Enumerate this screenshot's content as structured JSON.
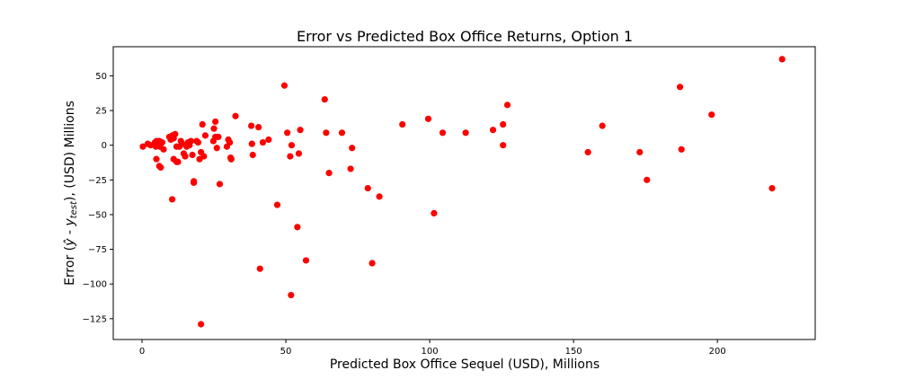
{
  "chart_data": {
    "type": "scatter",
    "title": "Error vs Predicted Box Office Returns, Option 1",
    "xlabel": "Predicted Box Office Sequel (USD), Millions",
    "ylabel": "Error (ŷ - y_test), (USD) Millions",
    "ylabel_parts": {
      "pre": "Error (",
      "yhat": "ŷ",
      "dash": " - ",
      "y": "y",
      "sub": "test",
      "post": "), (USD) Millions"
    },
    "xlim": [
      -10,
      234
    ],
    "ylim": [
      -140,
      71
    ],
    "xticks": [
      0,
      50,
      100,
      150,
      200
    ],
    "yticks": [
      -125,
      -100,
      -75,
      -50,
      -25,
      0,
      25,
      50
    ],
    "xtick_labels": [
      "0",
      "50",
      "100",
      "150",
      "200"
    ],
    "ytick_labels": [
      "−125",
      "−100",
      "−75",
      "−50",
      "−25",
      "0",
      "25",
      "50"
    ],
    "marker_color": "#ff0000",
    "grid": false,
    "series": [
      {
        "x": [
          0.3,
          2,
          3,
          4.5,
          4.8,
          5,
          5.2,
          5.5,
          6,
          6.2,
          6.5,
          7,
          7.5,
          5,
          6,
          6.5,
          9.5,
          10,
          10.5,
          11,
          11.5,
          12,
          10.5,
          11,
          12,
          12.5,
          13,
          13.5,
          14,
          14.5,
          15,
          15.5,
          16,
          16.5,
          17,
          17.5,
          18,
          19,
          19.5,
          20,
          20.5,
          21,
          21.5,
          22,
          18,
          20.5,
          25,
          25.5,
          24.8,
          25.5,
          26,
          26.5,
          27,
          29.5,
          30,
          30.5,
          30.8,
          31,
          31,
          32.5,
          38,
          38.5,
          38.2,
          40.5,
          41,
          42,
          44,
          47,
          49.5,
          50.5,
          51.5,
          51.8,
          52,
          54,
          54.5,
          55,
          57,
          63.5,
          64,
          65,
          69.5,
          72.5,
          73,
          78.5,
          80,
          82.5,
          90.5,
          99.5,
          101.5,
          104.5,
          112.5,
          122,
          125.5,
          125.5,
          127,
          155,
          160,
          173,
          175.5,
          187,
          187.5,
          198,
          219,
          222.5
        ],
        "y": [
          -1,
          1,
          0,
          2,
          -1,
          3,
          0,
          2,
          3,
          -1,
          1,
          2,
          -3,
          -10,
          -15,
          -16,
          6,
          4,
          7,
          -10,
          8,
          -1,
          -39,
          5,
          -12,
          -12,
          -1,
          3,
          1,
          -6,
          -8,
          -1,
          2,
          0,
          3,
          -7,
          -26,
          3,
          2,
          -10,
          -5,
          15,
          -8,
          7,
          -27,
          -129,
          12,
          17,
          3,
          6,
          -2,
          6,
          -28,
          -1,
          4,
          2,
          -9,
          -10,
          -10,
          21,
          14,
          -7,
          1,
          13,
          -89,
          2,
          4,
          -43,
          43,
          9,
          -8,
          -108,
          0,
          -59,
          -6,
          11,
          -83,
          33,
          9,
          -20,
          9,
          -17,
          -2,
          -31,
          -85,
          -37,
          15,
          19,
          -49,
          9,
          9,
          11,
          15,
          0,
          29,
          -5,
          14,
          -5,
          -25,
          42,
          -3,
          22,
          -31,
          62
        ]
      }
    ]
  }
}
